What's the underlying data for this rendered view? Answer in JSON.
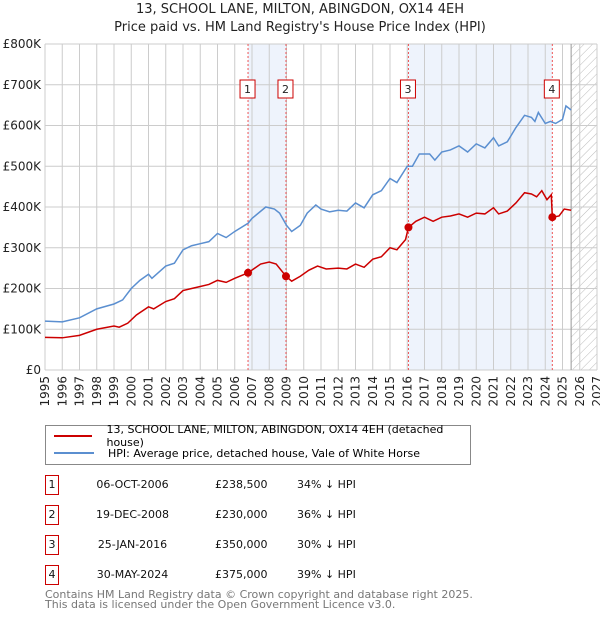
{
  "chart_data": {
    "type": "line",
    "title": "13, SCHOOL LANE, MILTON, ABINGDON, OX14 4EH",
    "subtitle": "Price paid vs. HM Land Registry's House Price Index (HPI)",
    "xlim": [
      1995,
      2027
    ],
    "ylim": [
      0,
      800000
    ],
    "x_ticks": [
      "1995",
      "1996",
      "1997",
      "1998",
      "1999",
      "2000",
      "2001",
      "2002",
      "2003",
      "2004",
      "2005",
      "2006",
      "2007",
      "2008",
      "2009",
      "2010",
      "2011",
      "2012",
      "2013",
      "2014",
      "2015",
      "2016",
      "2017",
      "2018",
      "2019",
      "2020",
      "2021",
      "2022",
      "2023",
      "2024",
      "2025",
      "2026",
      "2027"
    ],
    "y_ticks": [
      {
        "v": 0,
        "label": "£0"
      },
      {
        "v": 100000,
        "label": "£100K"
      },
      {
        "v": 200000,
        "label": "£200K"
      },
      {
        "v": 300000,
        "label": "£300K"
      },
      {
        "v": 400000,
        "label": "£400K"
      },
      {
        "v": 500000,
        "label": "£500K"
      },
      {
        "v": 600000,
        "label": "£600K"
      },
      {
        "v": 700000,
        "label": "£700K"
      },
      {
        "v": 800000,
        "label": "£800K"
      }
    ],
    "grid": true,
    "shaded_ranges": [
      [
        2006.77,
        2008.97
      ],
      [
        2016.07,
        2024.41
      ]
    ],
    "forecast_start": 2025.5,
    "series": [
      {
        "name": "13, SCHOOL LANE, MILTON, ABINGDON, OX14 4EH (detached house)",
        "color": "#cc0000",
        "points": [
          [
            1995,
            80
          ],
          [
            1996,
            79
          ],
          [
            1997,
            85
          ],
          [
            1998,
            100
          ],
          [
            1999,
            108
          ],
          [
            1999.3,
            105
          ],
          [
            1999.8,
            115
          ],
          [
            2000.3,
            135
          ],
          [
            2001,
            155
          ],
          [
            2001.3,
            150
          ],
          [
            2002,
            168
          ],
          [
            2002.5,
            175
          ],
          [
            2003,
            195
          ],
          [
            2003.5,
            200
          ],
          [
            2004,
            205
          ],
          [
            2004.5,
            210
          ],
          [
            2005,
            220
          ],
          [
            2005.5,
            215
          ],
          [
            2006,
            225
          ],
          [
            2006.77,
            238.5
          ],
          [
            2007.5,
            260
          ],
          [
            2008,
            265
          ],
          [
            2008.4,
            260
          ],
          [
            2008.97,
            230
          ],
          [
            2009.3,
            218
          ],
          [
            2009.8,
            230
          ],
          [
            2010.3,
            245
          ],
          [
            2010.8,
            255
          ],
          [
            2011.3,
            248
          ],
          [
            2012,
            250
          ],
          [
            2012.5,
            248
          ],
          [
            2013,
            260
          ],
          [
            2013.5,
            252
          ],
          [
            2014,
            272
          ],
          [
            2014.5,
            278
          ],
          [
            2015,
            300
          ],
          [
            2015.4,
            295
          ],
          [
            2015.9,
            320
          ],
          [
            2016.07,
            350
          ],
          [
            2016.5,
            365
          ],
          [
            2017,
            375
          ],
          [
            2017.5,
            365
          ],
          [
            2018,
            375
          ],
          [
            2018.5,
            378
          ],
          [
            2019,
            383
          ],
          [
            2019.5,
            375
          ],
          [
            2020,
            385
          ],
          [
            2020.5,
            383
          ],
          [
            2021,
            398
          ],
          [
            2021.3,
            383
          ],
          [
            2021.8,
            390
          ],
          [
            2022.3,
            410
          ],
          [
            2022.8,
            435
          ],
          [
            2023.2,
            432
          ],
          [
            2023.5,
            425
          ],
          [
            2023.8,
            440
          ],
          [
            2024.1,
            418
          ],
          [
            2024.35,
            430
          ],
          [
            2024.41,
            375
          ],
          [
            2024.8,
            378
          ],
          [
            2025.1,
            395
          ],
          [
            2025.5,
            392
          ]
        ]
      },
      {
        "name": "HPI: Average price, detached house, Vale of White Horse",
        "color": "#5b8fd0",
        "points": [
          [
            1995,
            120
          ],
          [
            1996,
            118
          ],
          [
            1997,
            128
          ],
          [
            1998,
            150
          ],
          [
            1999,
            162
          ],
          [
            1999.5,
            172
          ],
          [
            2000,
            200
          ],
          [
            2000.5,
            220
          ],
          [
            2001,
            235
          ],
          [
            2001.2,
            225
          ],
          [
            2002,
            255
          ],
          [
            2002.5,
            262
          ],
          [
            2003,
            295
          ],
          [
            2003.5,
            305
          ],
          [
            2004,
            310
          ],
          [
            2004.5,
            315
          ],
          [
            2005,
            335
          ],
          [
            2005.5,
            325
          ],
          [
            2006,
            340
          ],
          [
            2006.77,
            360
          ],
          [
            2007,
            372
          ],
          [
            2007.8,
            400
          ],
          [
            2008.3,
            395
          ],
          [
            2008.6,
            385
          ],
          [
            2009,
            355
          ],
          [
            2009.3,
            340
          ],
          [
            2009.8,
            355
          ],
          [
            2010.2,
            385
          ],
          [
            2010.7,
            405
          ],
          [
            2011,
            395
          ],
          [
            2011.5,
            388
          ],
          [
            2012,
            392
          ],
          [
            2012.5,
            390
          ],
          [
            2013,
            410
          ],
          [
            2013.5,
            398
          ],
          [
            2014,
            430
          ],
          [
            2014.5,
            440
          ],
          [
            2015,
            470
          ],
          [
            2015.4,
            460
          ],
          [
            2016,
            500
          ],
          [
            2016.3,
            500
          ],
          [
            2016.7,
            530
          ],
          [
            2017.3,
            530
          ],
          [
            2017.6,
            515
          ],
          [
            2018,
            535
          ],
          [
            2018.5,
            540
          ],
          [
            2019,
            550
          ],
          [
            2019.5,
            535
          ],
          [
            2020,
            555
          ],
          [
            2020.5,
            545
          ],
          [
            2021,
            570
          ],
          [
            2021.3,
            550
          ],
          [
            2021.8,
            560
          ],
          [
            2022.3,
            595
          ],
          [
            2022.8,
            625
          ],
          [
            2023.2,
            620
          ],
          [
            2023.4,
            610
          ],
          [
            2023.6,
            632
          ],
          [
            2024,
            605
          ],
          [
            2024.3,
            610
          ],
          [
            2024.6,
            605
          ],
          [
            2025,
            615
          ],
          [
            2025.2,
            648
          ],
          [
            2025.5,
            638
          ]
        ]
      }
    ],
    "y_point_units": "thousands GBP",
    "sales": [
      {
        "label": "1",
        "x": 2006.77,
        "y": 238.5
      },
      {
        "label": "2",
        "x": 2008.97,
        "y": 230
      },
      {
        "label": "3",
        "x": 2016.07,
        "y": 350
      },
      {
        "label": "4",
        "x": 2024.41,
        "y": 375
      }
    ]
  },
  "legend": {
    "property": "13, SCHOOL LANE, MILTON, ABINGDON, OX14 4EH (detached house)",
    "hpi": "HPI: Average price, detached house, Vale of White Horse"
  },
  "transactions": [
    {
      "num": "1",
      "date": "06-OCT-2006",
      "price": "£238,500",
      "pct": "34% ↓ HPI"
    },
    {
      "num": "2",
      "date": "19-DEC-2008",
      "price": "£230,000",
      "pct": "36% ↓ HPI"
    },
    {
      "num": "3",
      "date": "25-JAN-2016",
      "price": "£350,000",
      "pct": "30% ↓ HPI"
    },
    {
      "num": "4",
      "date": "30-MAY-2024",
      "price": "£375,000",
      "pct": "39% ↓ HPI"
    }
  ],
  "footer": {
    "line1": "Contains HM Land Registry data © Crown copyright and database right 2025.",
    "line2": "This data is licensed under the Open Government Licence v3.0."
  }
}
